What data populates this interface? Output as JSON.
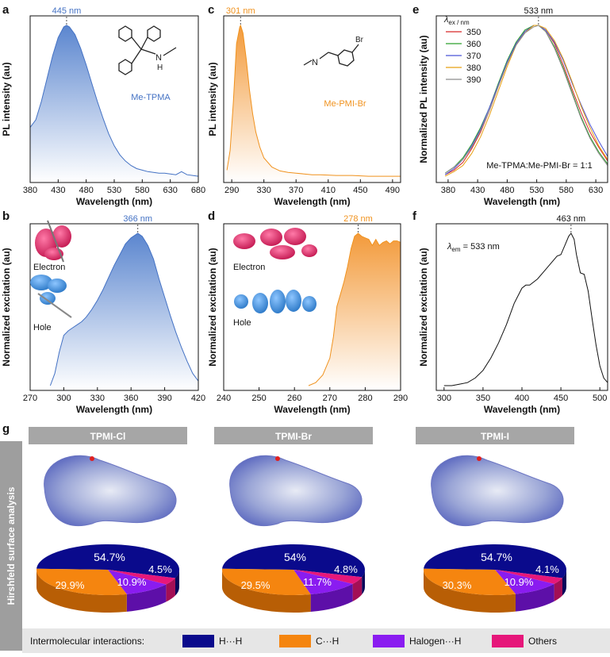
{
  "panel_letters": [
    "a",
    "b",
    "c",
    "d",
    "e",
    "f",
    "g"
  ],
  "chart_data": [
    {
      "id": "a",
      "type": "area",
      "ylabel": "PL intensity (au)",
      "xlabel": "Wavelength (nm)",
      "xlim": [
        380,
        680
      ],
      "xticks": [
        380,
        430,
        480,
        530,
        580,
        630,
        680
      ],
      "peak_label": "445 nm",
      "compound_label": "Me-TPMA",
      "color": "#4472c4",
      "x": [
        380,
        390,
        400,
        410,
        420,
        430,
        440,
        445,
        450,
        460,
        470,
        480,
        490,
        500,
        510,
        520,
        530,
        540,
        550,
        560,
        570,
        580,
        590,
        600,
        610,
        620,
        630,
        640,
        650,
        660,
        670,
        680
      ],
      "y": [
        0.33,
        0.38,
        0.5,
        0.65,
        0.8,
        0.92,
        0.99,
        1.0,
        0.99,
        0.94,
        0.85,
        0.74,
        0.62,
        0.5,
        0.39,
        0.29,
        0.21,
        0.15,
        0.11,
        0.08,
        0.06,
        0.05,
        0.04,
        0.035,
        0.03,
        0.03,
        0.025,
        0.02,
        0.04,
        0.02,
        0.015,
        0.01
      ]
    },
    {
      "id": "b",
      "type": "area",
      "ylabel": "Normalized excitation (au)",
      "xlabel": "Wavelength (nm)",
      "xlim": [
        270,
        420
      ],
      "xticks": [
        270,
        300,
        330,
        360,
        390,
        420
      ],
      "peak_label": "366 nm",
      "electron_label": "Electron",
      "hole_label": "Hole",
      "color": "#4472c4",
      "x": [
        288,
        292,
        296,
        300,
        304,
        308,
        312,
        316,
        320,
        325,
        330,
        335,
        340,
        345,
        350,
        355,
        360,
        366,
        370,
        375,
        380,
        385,
        390,
        395,
        400,
        405,
        410,
        415,
        420
      ],
      "y": [
        0.0,
        0.08,
        0.22,
        0.33,
        0.36,
        0.38,
        0.4,
        0.42,
        0.45,
        0.5,
        0.56,
        0.63,
        0.71,
        0.79,
        0.86,
        0.93,
        0.97,
        1.0,
        0.98,
        0.92,
        0.83,
        0.7,
        0.58,
        0.46,
        0.35,
        0.25,
        0.16,
        0.08,
        0.03
      ]
    },
    {
      "id": "c",
      "type": "area",
      "ylabel": "PL intensity (au)",
      "xlabel": "Wavelength (nm)",
      "xlim": [
        280,
        500
      ],
      "xticks": [
        290,
        330,
        370,
        410,
        450,
        490
      ],
      "peak_label": "301 nm",
      "compound_label": "Me-PMI-Br",
      "color": "#f0921e",
      "x": [
        284,
        288,
        292,
        296,
        300,
        301,
        304,
        308,
        312,
        316,
        320,
        325,
        330,
        340,
        350,
        360,
        370,
        380,
        390,
        400,
        420,
        440,
        460,
        480,
        500
      ],
      "y": [
        0.05,
        0.18,
        0.5,
        0.88,
        0.99,
        1.0,
        0.95,
        0.78,
        0.58,
        0.42,
        0.3,
        0.2,
        0.13,
        0.07,
        0.045,
        0.035,
        0.03,
        0.025,
        0.02,
        0.02,
        0.015,
        0.015,
        0.01,
        0.01,
        0.01
      ]
    },
    {
      "id": "d",
      "type": "area",
      "ylabel": "Normalized excitation (au)",
      "xlabel": "Wavelength (nm)",
      "xlim": [
        240,
        290
      ],
      "xticks": [
        240,
        250,
        260,
        270,
        280,
        290
      ],
      "peak_label": "278 nm",
      "electron_label": "Electron",
      "hole_label": "Hole",
      "color": "#f0921e",
      "x": [
        264,
        266,
        268,
        270,
        271,
        272,
        273,
        274,
        275,
        276,
        277,
        278,
        279,
        280,
        281,
        282,
        283,
        284,
        285,
        286,
        287,
        288,
        289,
        290
      ],
      "y": [
        0.0,
        0.02,
        0.07,
        0.18,
        0.32,
        0.52,
        0.6,
        0.68,
        0.78,
        0.9,
        0.98,
        1.0,
        0.98,
        0.97,
        0.96,
        0.92,
        0.96,
        0.92,
        0.94,
        0.95,
        0.93,
        0.95,
        0.95,
        0.94
      ]
    },
    {
      "id": "e",
      "type": "line",
      "ylabel": "Normalized PL intensity (au)",
      "xlabel": "Wavelength (nm)",
      "xlim": [
        360,
        650
      ],
      "xticks": [
        380,
        430,
        480,
        530,
        580,
        630
      ],
      "peak_label": "533 nm",
      "legend_title": "ex / nm",
      "legend_symbol": "λ",
      "annotation": "Me-TPMA:Me-PMI-Br = 1:1",
      "x": [
        375,
        390,
        405,
        420,
        435,
        450,
        465,
        480,
        495,
        510,
        525,
        533,
        545,
        560,
        575,
        590,
        605,
        620,
        635,
        650
      ],
      "series": [
        {
          "name": "350",
          "color": "#d62728",
          "values": [
            0.02,
            0.05,
            0.1,
            0.19,
            0.3,
            0.44,
            0.6,
            0.75,
            0.88,
            0.96,
            1.0,
            1.0,
            0.97,
            0.88,
            0.74,
            0.58,
            0.43,
            0.3,
            0.2,
            0.11
          ]
        },
        {
          "name": "360",
          "color": "#2ca02c",
          "values": [
            0.03,
            0.07,
            0.13,
            0.22,
            0.33,
            0.46,
            0.62,
            0.77,
            0.89,
            0.97,
            1.0,
            1.0,
            0.96,
            0.86,
            0.72,
            0.56,
            0.4,
            0.27,
            0.17,
            0.09
          ]
        },
        {
          "name": "370",
          "color": "#4b53d8",
          "values": [
            0.02,
            0.06,
            0.12,
            0.21,
            0.32,
            0.46,
            0.61,
            0.76,
            0.88,
            0.96,
            1.0,
            1.0,
            0.97,
            0.89,
            0.77,
            0.62,
            0.48,
            0.35,
            0.24,
            0.14
          ]
        },
        {
          "name": "380",
          "color": "#e8a013",
          "values": [
            0.01,
            0.04,
            0.08,
            0.16,
            0.27,
            0.41,
            0.57,
            0.73,
            0.87,
            0.95,
            1.0,
            1.0,
            0.98,
            0.9,
            0.78,
            0.63,
            0.47,
            0.33,
            0.21,
            0.12
          ]
        },
        {
          "name": "390",
          "color": "#8c8c8c",
          "values": [
            0.03,
            0.07,
            0.12,
            0.2,
            0.31,
            0.44,
            0.6,
            0.75,
            0.87,
            0.95,
            0.99,
            1.0,
            0.96,
            0.85,
            0.71,
            0.55,
            0.39,
            0.26,
            0.16,
            0.08
          ]
        }
      ]
    },
    {
      "id": "f",
      "type": "line",
      "ylabel": "Normalized excitation (au)",
      "xlabel": "Wavelength (nm)",
      "xlim": [
        290,
        510
      ],
      "xticks": [
        300,
        350,
        400,
        450,
        500
      ],
      "peak_label": "463 nm",
      "annotation_main": "λ",
      "annotation_sub": "em",
      "annotation_rest": " = 533 nm",
      "color": "#111111",
      "x": [
        300,
        310,
        320,
        330,
        340,
        350,
        360,
        370,
        380,
        390,
        400,
        405,
        410,
        420,
        430,
        440,
        445,
        450,
        455,
        460,
        463,
        467,
        470,
        475,
        480,
        485,
        490,
        495,
        500,
        505,
        510
      ],
      "y": [
        0.0,
        0.0,
        0.01,
        0.02,
        0.05,
        0.1,
        0.18,
        0.28,
        0.4,
        0.54,
        0.64,
        0.66,
        0.66,
        0.7,
        0.76,
        0.82,
        0.85,
        0.86,
        0.92,
        0.98,
        1.0,
        0.96,
        0.86,
        0.74,
        0.73,
        0.62,
        0.44,
        0.27,
        0.13,
        0.05,
        0.02
      ]
    }
  ],
  "hirshfeld": {
    "side_label": "Hirshfeld surface analysis",
    "panels": [
      {
        "title": "TPMI-Cl",
        "hh": 54.7,
        "ch": 29.9,
        "xh": 10.9,
        "others": 4.5,
        "hh_label": "54.7%",
        "ch_label": "29.9%",
        "xh_label": "10.9%",
        "others_label": "4.5%"
      },
      {
        "title": "TPMI-Br",
        "hh": 54.0,
        "ch": 29.5,
        "xh": 11.7,
        "others": 4.8,
        "hh_label": "54%",
        "ch_label": "29.5%",
        "xh_label": "11.7%",
        "others_label": "4.8%"
      },
      {
        "title": "TPMI-I",
        "hh": 54.7,
        "ch": 30.3,
        "xh": 10.9,
        "others": 4.1,
        "hh_label": "54.7%",
        "ch_label": "30.3%",
        "xh_label": "10.9%",
        "others_label": "4.1%"
      }
    ],
    "legend_title": "Intermolecular interactions:",
    "legend": [
      {
        "name": "H···H",
        "color": "#0a0a8c"
      },
      {
        "name": "C···H",
        "color": "#f5850f"
      },
      {
        "name": "Halogen···H",
        "color": "#8a1cf0"
      },
      {
        "name": "Others",
        "color": "#e6177a"
      }
    ]
  }
}
